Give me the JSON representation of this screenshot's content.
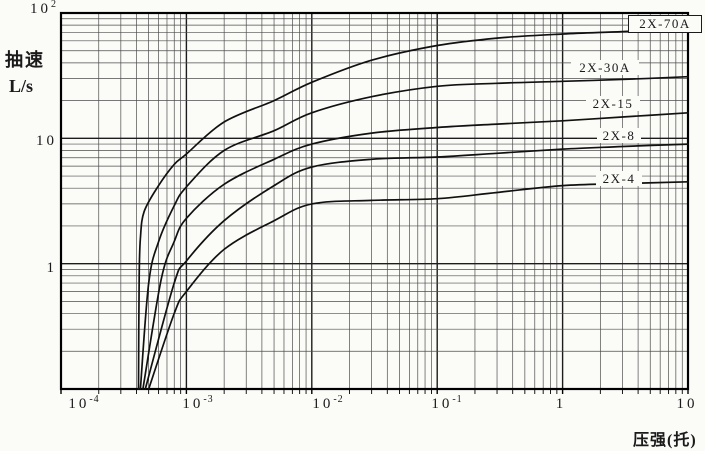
{
  "chart_data": {
    "type": "line",
    "title": "",
    "x_axis": {
      "label": "压强(托)",
      "scale": "log",
      "min": 0.0001,
      "max": 10,
      "ticks": [
        {
          "base": "10",
          "sup": "-4"
        },
        {
          "base": "10",
          "sup": "-3"
        },
        {
          "base": "10",
          "sup": "-2"
        },
        {
          "base": "10",
          "sup": "-1"
        },
        {
          "base": "1",
          "sup": ""
        },
        {
          "base": "10",
          "sup": ""
        }
      ]
    },
    "y_axis": {
      "label": "抽速",
      "unit": "L/s",
      "scale": "log",
      "min": 0.1,
      "max": 100,
      "ticks": [
        {
          "base": "10",
          "sup": "2"
        },
        {
          "base": "10",
          "sup": ""
        },
        {
          "base": "1",
          "sup": ""
        }
      ]
    },
    "grid": {
      "major": true,
      "minor": true
    },
    "legend_position": "inline-labels",
    "colors": {
      "curve": "#111111",
      "grid_minor": "#4d4d4d",
      "grid_major": "#1c1c1c",
      "border": "#000000",
      "background": "#fbfbf8",
      "text": "#1a1a1a"
    },
    "series": [
      {
        "name": "2X-70A",
        "points": [
          [
            0.000415,
            0.1
          ],
          [
            0.00042,
            0.8
          ],
          [
            0.00043,
            1.6
          ],
          [
            0.00046,
            2.6
          ],
          [
            0.0006,
            4.2
          ],
          [
            0.0008,
            6.2
          ],
          [
            0.001,
            7.5
          ],
          [
            0.002,
            13.5
          ],
          [
            0.005,
            20
          ],
          [
            0.01,
            28
          ],
          [
            0.03,
            42
          ],
          [
            0.1,
            55
          ],
          [
            0.3,
            63
          ],
          [
            1,
            68
          ],
          [
            3,
            71
          ],
          [
            10,
            75
          ]
        ]
      },
      {
        "name": "2X-30A",
        "points": [
          [
            0.00043,
            0.1
          ],
          [
            0.0005,
            0.7
          ],
          [
            0.0006,
            1.5
          ],
          [
            0.0008,
            2.9
          ],
          [
            0.001,
            4.1
          ],
          [
            0.002,
            8
          ],
          [
            0.005,
            11.5
          ],
          [
            0.01,
            16
          ],
          [
            0.03,
            21.5
          ],
          [
            0.1,
            26
          ],
          [
            0.3,
            27.5
          ],
          [
            1,
            28.5
          ],
          [
            3,
            29.5
          ],
          [
            10,
            31
          ]
        ]
      },
      {
        "name": "2X-15",
        "points": [
          [
            0.00045,
            0.1
          ],
          [
            0.00063,
            0.75
          ],
          [
            0.0008,
            1.5
          ],
          [
            0.001,
            2.3
          ],
          [
            0.002,
            4.3
          ],
          [
            0.005,
            6.8
          ],
          [
            0.01,
            9
          ],
          [
            0.03,
            11
          ],
          [
            0.1,
            12.2
          ],
          [
            0.3,
            13
          ],
          [
            1,
            13.8
          ],
          [
            3,
            14.8
          ],
          [
            10,
            16
          ]
        ]
      },
      {
        "name": "2X-8",
        "points": [
          [
            0.00047,
            0.1
          ],
          [
            0.0008,
            0.7
          ],
          [
            0.001,
            1.05
          ],
          [
            0.002,
            2.2
          ],
          [
            0.005,
            4.2
          ],
          [
            0.01,
            5.9
          ],
          [
            0.03,
            6.8
          ],
          [
            0.1,
            7.1
          ],
          [
            0.3,
            7.6
          ],
          [
            1,
            8.2
          ],
          [
            3,
            8.6
          ],
          [
            10,
            9
          ]
        ]
      },
      {
        "name": "2X-4",
        "points": [
          [
            0.0005,
            0.1
          ],
          [
            0.0008,
            0.4
          ],
          [
            0.001,
            0.6
          ],
          [
            0.002,
            1.3
          ],
          [
            0.005,
            2.2
          ],
          [
            0.01,
            3
          ],
          [
            0.03,
            3.2
          ],
          [
            0.1,
            3.3
          ],
          [
            0.3,
            3.7
          ],
          [
            1,
            4.2
          ],
          [
            3,
            4.35
          ],
          [
            10,
            4.5
          ]
        ]
      }
    ]
  }
}
